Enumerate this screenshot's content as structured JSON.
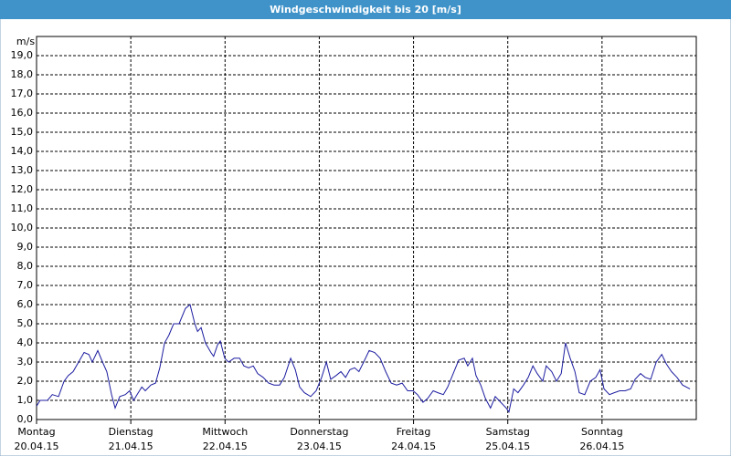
{
  "chart_data": {
    "type": "line",
    "title": "Windgeschwindigkeit bis 20 [m/s]",
    "y_label": "m/s",
    "xlim": [
      0,
      168
    ],
    "xticks": [
      {
        "value": 0,
        "label": "Montag",
        "date": "20.04.15"
      },
      {
        "value": 24,
        "label": "Dienstag",
        "date": "21.04.15"
      },
      {
        "value": 48,
        "label": "Mittwoch",
        "date": "22.04.15"
      },
      {
        "value": 72,
        "label": "Donnerstag",
        "date": "23.04.15"
      },
      {
        "value": 96,
        "label": "Freitag",
        "date": "24.04.15"
      },
      {
        "value": 120,
        "label": "Samstag",
        "date": "25.04.15"
      },
      {
        "value": 144,
        "label": "Sonntag",
        "date": "26.04.15"
      }
    ],
    "ylim": [
      0,
      20
    ],
    "yticks": [
      {
        "value": 0,
        "label": "0,0"
      },
      {
        "value": 1,
        "label": "1,0"
      },
      {
        "value": 2,
        "label": "2,0"
      },
      {
        "value": 3,
        "label": "3,0"
      },
      {
        "value": 4,
        "label": "4,0"
      },
      {
        "value": 5,
        "label": "5,0"
      },
      {
        "value": 6,
        "label": "6,0"
      },
      {
        "value": 7,
        "label": "7,0"
      },
      {
        "value": 8,
        "label": "8,0"
      },
      {
        "value": 9,
        "label": "9,0"
      },
      {
        "value": 10,
        "label": "10,0"
      },
      {
        "value": 11,
        "label": "11,0"
      },
      {
        "value": 12,
        "label": "12,0"
      },
      {
        "value": 13,
        "label": "13,0"
      },
      {
        "value": 14,
        "label": "14,0"
      },
      {
        "value": 15,
        "label": "15,0"
      },
      {
        "value": 16,
        "label": "16,0"
      },
      {
        "value": 17,
        "label": "17,0"
      },
      {
        "value": 18,
        "label": "18,0"
      },
      {
        "value": 19,
        "label": "19,0"
      }
    ],
    "grid": true,
    "series": [
      {
        "color": "#1c1ca0",
        "x": [
          0,
          0.9,
          2.8,
          4.0,
          5.6,
          7.0,
          8.1,
          9.3,
          10.7,
          12.1,
          13.3,
          14.2,
          15.6,
          16.8,
          17.9,
          19.1,
          20.0,
          21.2,
          22.6,
          23.7,
          24.7,
          25.6,
          26.8,
          27.7,
          29.1,
          30.3,
          31.4,
          32.6,
          33.7,
          34.9,
          36.3,
          37.9,
          39.1,
          40.3,
          41.0,
          41.9,
          43.0,
          44.4,
          45.1,
          46.1,
          46.8,
          47.9,
          48.9,
          50.3,
          51.7,
          52.8,
          54.0,
          55.2,
          56.3,
          57.7,
          59.1,
          60.5,
          61.9,
          63.1,
          64.7,
          65.9,
          67.0,
          68.2,
          69.8,
          71.2,
          72.6,
          73.8,
          74.9,
          76.3,
          77.5,
          78.7,
          79.8,
          81.0,
          82.1,
          83.3,
          84.7,
          86.1,
          87.5,
          88.9,
          90.3,
          91.7,
          93.1,
          94.5,
          95.9,
          97.0,
          98.4,
          99.6,
          101.0,
          102.2,
          103.6,
          104.7,
          106.1,
          107.5,
          108.9,
          109.8,
          111.0,
          111.9,
          113.1,
          114.3,
          115.6,
          116.8,
          118.2,
          119.6,
          120.3,
          121.5,
          122.6,
          124.0,
          125.2,
          126.4,
          127.5,
          128.9,
          129.8,
          131.2,
          132.4,
          133.6,
          134.7,
          135.9,
          137.1,
          138.2,
          139.6,
          141.0,
          142.4,
          143.5,
          144.5,
          145.9,
          147.1,
          148.5,
          149.9,
          151.3,
          152.4,
          153.8,
          155.0,
          156.4,
          157.8,
          159.2,
          160.4,
          161.7,
          163.1,
          164.5,
          166.4
        ],
        "values": [
          0.7,
          1.0,
          1.0,
          1.3,
          1.2,
          2.0,
          2.3,
          2.5,
          3.0,
          3.5,
          3.4,
          3.0,
          3.6,
          3.0,
          2.5,
          1.3,
          0.6,
          1.2,
          1.3,
          1.5,
          1.0,
          1.3,
          1.7,
          1.5,
          1.8,
          1.9,
          2.7,
          4.0,
          4.4,
          5.0,
          5.0,
          5.8,
          6.0,
          5.0,
          4.6,
          4.8,
          4.0,
          3.5,
          3.3,
          3.9,
          4.1,
          3.2,
          3.0,
          3.2,
          3.2,
          2.8,
          2.7,
          2.8,
          2.4,
          2.2,
          1.9,
          1.8,
          1.8,
          2.2,
          3.2,
          2.6,
          1.7,
          1.4,
          1.2,
          1.5,
          2.2,
          3.0,
          2.1,
          2.3,
          2.5,
          2.2,
          2.6,
          2.7,
          2.5,
          3.0,
          3.6,
          3.5,
          3.2,
          2.5,
          1.9,
          1.8,
          1.9,
          1.5,
          1.5,
          1.3,
          0.9,
          1.1,
          1.5,
          1.4,
          1.3,
          1.7,
          2.4,
          3.1,
          3.2,
          2.8,
          3.2,
          2.3,
          1.8,
          1.1,
          0.6,
          1.2,
          0.9,
          0.6,
          0.4,
          1.6,
          1.4,
          1.8,
          2.2,
          2.8,
          2.4,
          2.0,
          2.8,
          2.5,
          2.0,
          2.4,
          4.0,
          3.2,
          2.5,
          1.4,
          1.3,
          2.0,
          2.2,
          2.6,
          1.6,
          1.3,
          1.4,
          1.5,
          1.5,
          1.6,
          2.1,
          2.4,
          2.2,
          2.1,
          3.0,
          3.4,
          2.9,
          2.5,
          2.2,
          1.8,
          1.6
        ]
      }
    ]
  }
}
